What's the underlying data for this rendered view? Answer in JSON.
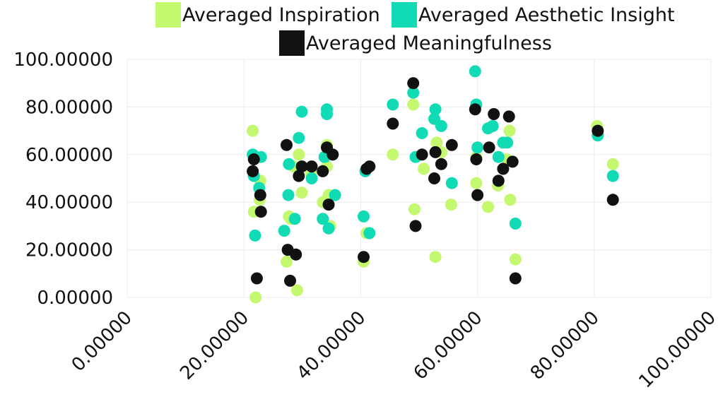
{
  "chart_data": {
    "type": "scatter",
    "title": "",
    "xlabel": "",
    "ylabel": "",
    "xlim": [
      0,
      100
    ],
    "ylim": [
      0,
      100
    ],
    "x_ticks": [
      "0.00000",
      "20.00000",
      "40.00000",
      "60.00000",
      "80.00000",
      "100.00000"
    ],
    "y_ticks": [
      "0.00000",
      "20.00000",
      "40.00000",
      "60.00000",
      "80.00000",
      "100.00000"
    ],
    "grid": true,
    "legend_position": "top",
    "series": [
      {
        "name": "Averaged Inspiration",
        "color": "#c3f86f",
        "points": [
          [
            21.5,
            70
          ],
          [
            21.7,
            36
          ],
          [
            22,
            0
          ],
          [
            22.7,
            41
          ],
          [
            22.8,
            49
          ],
          [
            27.3,
            15
          ],
          [
            27.7,
            34
          ],
          [
            28,
            33
          ],
          [
            28.5,
            55
          ],
          [
            29.1,
            3
          ],
          [
            29.4,
            60
          ],
          [
            29.9,
            44
          ],
          [
            31.5,
            52
          ],
          [
            33.5,
            40
          ],
          [
            34.2,
            64
          ],
          [
            34.2,
            55
          ],
          [
            34.5,
            43
          ],
          [
            34.8,
            30
          ],
          [
            40.5,
            15
          ],
          [
            41,
            27
          ],
          [
            45.5,
            60
          ],
          [
            49,
            81
          ],
          [
            49.2,
            37
          ],
          [
            50.8,
            54
          ],
          [
            52.8,
            17
          ],
          [
            53,
            65
          ],
          [
            53.8,
            61
          ],
          [
            55.5,
            39
          ],
          [
            59.8,
            59
          ],
          [
            59.8,
            48
          ],
          [
            61.8,
            38
          ],
          [
            63.5,
            47
          ],
          [
            65,
            58
          ],
          [
            65.5,
            70
          ],
          [
            65.6,
            41
          ],
          [
            66.5,
            16
          ],
          [
            80.5,
            72
          ],
          [
            83.2,
            56
          ]
        ]
      },
      {
        "name": "Averaged Aesthetic Insight",
        "color": "#10dbb5",
        "points": [
          [
            21.5,
            60
          ],
          [
            21.7,
            51
          ],
          [
            21.9,
            26
          ],
          [
            22.6,
            46
          ],
          [
            22.9,
            59
          ],
          [
            26.9,
            28
          ],
          [
            27.6,
            43
          ],
          [
            27.7,
            56
          ],
          [
            28.7,
            33
          ],
          [
            29.4,
            67
          ],
          [
            29.9,
            78
          ],
          [
            31.6,
            50
          ],
          [
            33.8,
            59
          ],
          [
            33.5,
            33
          ],
          [
            34.2,
            79
          ],
          [
            34.2,
            77
          ],
          [
            34.5,
            29
          ],
          [
            35.6,
            43
          ],
          [
            40.5,
            34
          ],
          [
            40.8,
            53
          ],
          [
            41.5,
            27
          ],
          [
            45.5,
            81
          ],
          [
            49,
            86
          ],
          [
            49.4,
            59
          ],
          [
            50.5,
            69
          ],
          [
            52.6,
            75
          ],
          [
            52.8,
            79
          ],
          [
            53.8,
            72
          ],
          [
            55.6,
            48
          ],
          [
            59.6,
            95
          ],
          [
            59.8,
            81
          ],
          [
            60,
            63
          ],
          [
            61.8,
            71
          ],
          [
            62.6,
            72
          ],
          [
            63.6,
            59
          ],
          [
            64.4,
            65
          ],
          [
            65.1,
            65
          ],
          [
            66.5,
            31
          ],
          [
            80.6,
            68
          ],
          [
            83.2,
            51
          ]
        ]
      },
      {
        "name": "Averaged Meaningfulness",
        "color": "#111111",
        "points": [
          [
            21.5,
            53
          ],
          [
            21.7,
            58
          ],
          [
            22.2,
            8
          ],
          [
            22.8,
            43
          ],
          [
            22.9,
            36
          ],
          [
            27.3,
            64
          ],
          [
            27.5,
            20
          ],
          [
            27.9,
            7
          ],
          [
            28.9,
            18
          ],
          [
            29.4,
            51
          ],
          [
            29.9,
            55
          ],
          [
            31.6,
            55
          ],
          [
            33.5,
            53
          ],
          [
            34.2,
            63
          ],
          [
            34.5,
            39
          ],
          [
            35.2,
            60
          ],
          [
            40.5,
            17
          ],
          [
            41,
            54
          ],
          [
            41.5,
            55
          ],
          [
            45.5,
            73
          ],
          [
            49,
            90
          ],
          [
            49.4,
            30
          ],
          [
            50.5,
            60
          ],
          [
            52.6,
            50
          ],
          [
            52.8,
            61
          ],
          [
            53.8,
            56
          ],
          [
            55.6,
            64
          ],
          [
            59.6,
            79
          ],
          [
            59.8,
            58
          ],
          [
            60,
            43
          ],
          [
            62,
            63
          ],
          [
            62.8,
            77
          ],
          [
            63.6,
            49
          ],
          [
            64.4,
            54
          ],
          [
            65.4,
            76
          ],
          [
            66,
            57
          ],
          [
            66.5,
            8
          ],
          [
            80.6,
            70
          ],
          [
            83.2,
            41
          ]
        ]
      }
    ]
  }
}
